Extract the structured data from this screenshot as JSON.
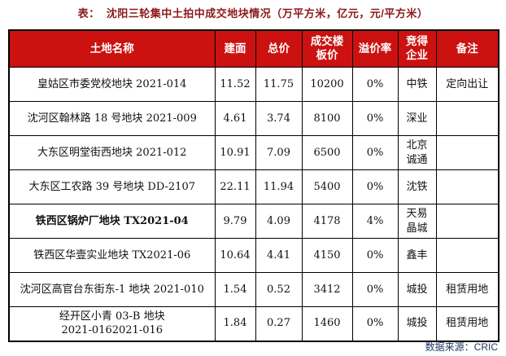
{
  "title": "表：  沈阳三轮集中土拍中成交地块情况（万平方米，亿元，元/平方米）",
  "table": {
    "columns": [
      {
        "key": "name",
        "label": "土地名称"
      },
      {
        "key": "area",
        "label": "建面"
      },
      {
        "key": "total_price",
        "label": "总价"
      },
      {
        "key": "floor_price",
        "label": "成交楼\n板价"
      },
      {
        "key": "premium_rate",
        "label": "溢价率"
      },
      {
        "key": "winner",
        "label": "竞得\n企业"
      },
      {
        "key": "remark",
        "label": "备注"
      }
    ],
    "rows": [
      {
        "name": "皇姑区市委党校地块 2021-014",
        "area": "11.52",
        "total_price": "11.75",
        "floor_price": "10200",
        "premium_rate": "0%",
        "winner": "中铁",
        "remark": "定向出让",
        "bold": false
      },
      {
        "name": "沈河区翰林路 18 号地块 2021-009",
        "area": "4.61",
        "total_price": "3.74",
        "floor_price": "8100",
        "premium_rate": "0%",
        "winner": "深业",
        "remark": "",
        "bold": false
      },
      {
        "name": "大东区明堂街西地块 2021-012",
        "area": "10.91",
        "total_price": "7.09",
        "floor_price": "6500",
        "premium_rate": "0%",
        "winner": "北京\n诚通",
        "remark": "",
        "bold": false
      },
      {
        "name": "大东区工农路 39 号地块 DD-2107",
        "area": "22.11",
        "total_price": "11.94",
        "floor_price": "5400",
        "premium_rate": "0%",
        "winner": "沈铁",
        "remark": "",
        "bold": false
      },
      {
        "name": "铁西区锅炉厂地块 TX2021-04",
        "area": "9.79",
        "total_price": "4.09",
        "floor_price": "4178",
        "premium_rate": "4%",
        "winner": "天易\n晶城",
        "remark": "",
        "bold": true
      },
      {
        "name": "铁西区华壹实业地块 TX2021-06",
        "area": "10.64",
        "total_price": "4.41",
        "floor_price": "4150",
        "premium_rate": "0%",
        "winner": "鑫丰",
        "remark": "",
        "bold": false
      },
      {
        "name": "沈河区高官台东街东-1 地块 2021-010",
        "area": "1.54",
        "total_price": "0.52",
        "floor_price": "3412",
        "premium_rate": "0%",
        "winner": "城投",
        "remark": "租赁用地",
        "bold": false
      },
      {
        "name": "经开区小青 03-B 地块\n2021-0162021-016",
        "area": "1.84",
        "total_price": "0.27",
        "floor_price": "1460",
        "premium_rate": "0%",
        "winner": "城投",
        "remark": "租赁用地",
        "bold": false
      }
    ]
  },
  "footer": {
    "source": "数据来源：CRIC"
  },
  "colors": {
    "header_bg": "#CC1111",
    "header_text": "#FFFFFF",
    "title_text": "#8B1A1A",
    "source_text": "#1F3864",
    "border": "#000000"
  }
}
